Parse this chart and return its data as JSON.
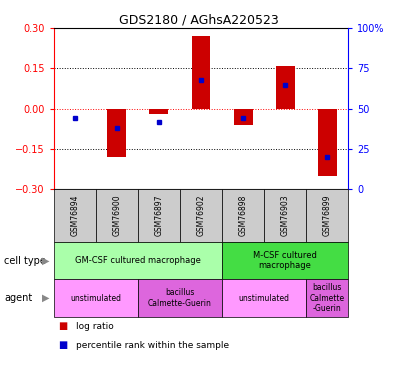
{
  "title": "GDS2180 / AGhsA220523",
  "samples": [
    "GSM76894",
    "GSM76900",
    "GSM76897",
    "GSM76902",
    "GSM76898",
    "GSM76903",
    "GSM76899"
  ],
  "log_ratio": [
    0.0,
    -0.18,
    -0.02,
    0.27,
    -0.06,
    0.16,
    -0.25
  ],
  "percentile_rank": [
    44,
    38,
    42,
    68,
    44,
    65,
    20
  ],
  "ylim_left": [
    -0.3,
    0.3
  ],
  "ylim_right": [
    0,
    100
  ],
  "yticks_left": [
    -0.3,
    -0.15,
    0,
    0.15,
    0.3
  ],
  "yticks_right": [
    0,
    25,
    50,
    75,
    100
  ],
  "bar_color": "#cc0000",
  "dot_color": "#0000cc",
  "cell_type_row": {
    "groups": [
      {
        "label": "GM-CSF cultured macrophage",
        "span": [
          0,
          3
        ],
        "color": "#aaffaa"
      },
      {
        "label": "M-CSF cultured\nmacrophage",
        "span": [
          4,
          6
        ],
        "color": "#44dd44"
      }
    ]
  },
  "agent_row": {
    "groups": [
      {
        "label": "unstimulated",
        "span": [
          0,
          1
        ],
        "color": "#ff99ff"
      },
      {
        "label": "bacillus\nCalmette-Guerin",
        "span": [
          2,
          3
        ],
        "color": "#dd66dd"
      },
      {
        "label": "unstimulated",
        "span": [
          4,
          5
        ],
        "color": "#ff99ff"
      },
      {
        "label": "bacillus\nCalmette\n-Guerin",
        "span": [
          6,
          6
        ],
        "color": "#dd66dd"
      }
    ]
  },
  "legend_items": [
    {
      "label": "log ratio",
      "color": "#cc0000"
    },
    {
      "label": "percentile rank within the sample",
      "color": "#0000cc"
    }
  ]
}
